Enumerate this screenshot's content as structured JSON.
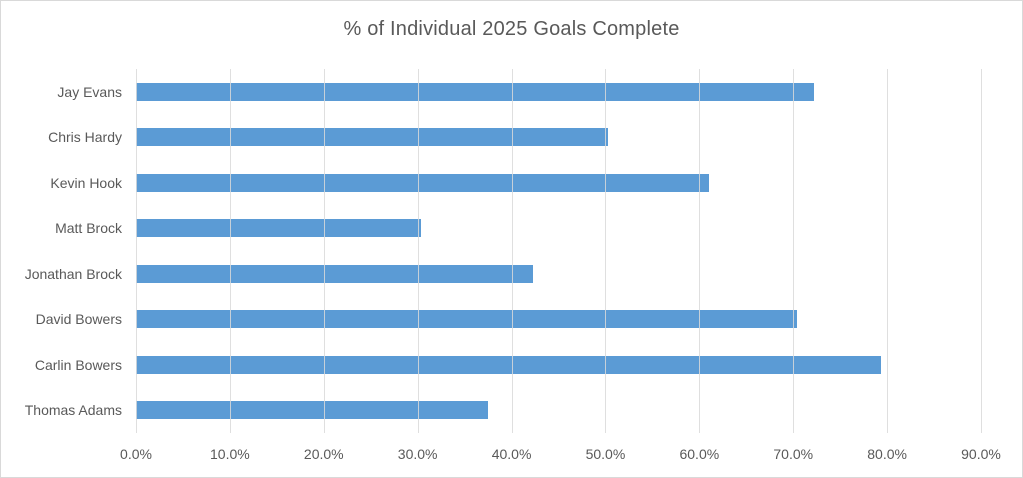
{
  "chart_data": {
    "type": "bar",
    "orientation": "horizontal",
    "title": "% of Individual 2025 Goals Complete",
    "categories": [
      "Jay Evans",
      "Chris Hardy",
      "Kevin Hook",
      "Matt Brock",
      "Jonathan Brock",
      "David Bowers",
      "Carlin Bowers",
      "Thomas Adams"
    ],
    "values": [
      72.2,
      50.3,
      61.0,
      30.4,
      42.3,
      70.4,
      79.3,
      37.5
    ],
    "xlabel": "",
    "ylabel": "",
    "x_axis": {
      "min": 0,
      "max": 90,
      "step": 10,
      "ticks": [
        "0.0%",
        "10.0%",
        "20.0%",
        "30.0%",
        "40.0%",
        "50.0%",
        "60.0%",
        "70.0%",
        "80.0%",
        "90.0%"
      ]
    },
    "grid": true,
    "legend": false,
    "colors": {
      "bar": "#5B9BD5",
      "gridline": "#D9D9D9",
      "text": "#595959",
      "border": "#D9D9D9",
      "background": "#FFFFFF"
    }
  }
}
